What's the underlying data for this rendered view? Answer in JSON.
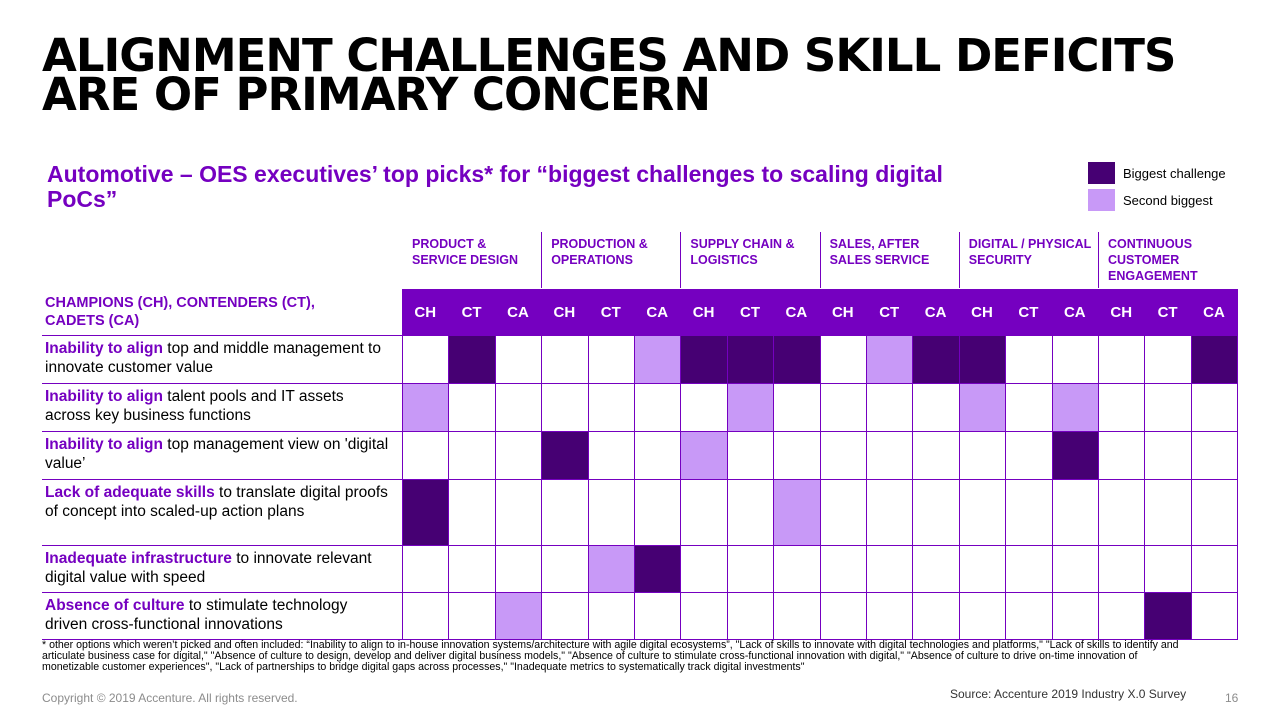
{
  "title": {
    "line1": "ALIGNMENT CHALLENGES AND SKILL DEFICITS",
    "line2": "ARE OF PRIMARY CONCERN"
  },
  "subtitle": "Automotive – OES executives’ top picks* for “biggest challenges to scaling digital PoCs”",
  "legend": [
    {
      "label": "Biggest challenge",
      "color": "#460073"
    },
    {
      "label": "Second biggest",
      "color": "#c899f7"
    }
  ],
  "colors": {
    "accent": "#7500c0",
    "biggest": "#460073",
    "second": "#c899f7"
  },
  "row_header": "CHAMPIONS (CH), CONTENDERS (CT), CADETS (CA)",
  "categories": [
    "PRODUCT & SERVICE DESIGN",
    "PRODUCTION & OPERATIONS",
    "SUPPLY CHAIN & LOGISTICS",
    "SALES, AFTER SALES SERVICE",
    "DIGITAL / PHYSICAL SECURITY",
    "CONTINUOUS CUSTOMER ENGAGEMENT"
  ],
  "sub_columns": [
    "CH",
    "CT",
    "CA"
  ],
  "rows": [
    {
      "bold": "Inability to align",
      "rest": " top and middle management to innovate customer value",
      "cells": [
        0,
        1,
        0,
        0,
        0,
        2,
        1,
        1,
        1,
        0,
        2,
        1,
        1,
        0,
        0,
        0,
        0,
        1
      ]
    },
    {
      "bold": "Inability to align",
      "rest": " talent pools and IT assets across key business functions",
      "cells": [
        2,
        0,
        0,
        0,
        0,
        0,
        0,
        2,
        0,
        0,
        0,
        0,
        2,
        0,
        2,
        0,
        0,
        0
      ]
    },
    {
      "bold": "Inability to align",
      "rest": " top management view on 'digital value’",
      "cells": [
        0,
        0,
        0,
        1,
        0,
        0,
        2,
        0,
        0,
        0,
        0,
        0,
        0,
        0,
        1,
        0,
        0,
        0
      ]
    },
    {
      "bold": "Lack of adequate skills",
      "rest": " to translate digital proofs of concept into scaled-up action plans",
      "cells": [
        1,
        0,
        0,
        0,
        0,
        0,
        0,
        0,
        2,
        0,
        0,
        0,
        0,
        0,
        0,
        0,
        0,
        0
      ]
    },
    {
      "bold": "Inadequate infrastructure",
      "rest": " to innovate relevant digital value with speed",
      "cells": [
        0,
        0,
        0,
        0,
        2,
        1,
        0,
        0,
        0,
        0,
        0,
        0,
        0,
        0,
        0,
        0,
        0,
        0
      ]
    },
    {
      "bold": "Absence of culture",
      "rest": " to stimulate technology driven cross-functional innovations",
      "cells": [
        0,
        0,
        2,
        0,
        0,
        0,
        0,
        0,
        0,
        0,
        0,
        0,
        0,
        0,
        0,
        0,
        1,
        0
      ]
    }
  ],
  "footnote": "* other options which weren’t picked and often included: “Inability to align to in-house innovation systems/architecture with agile digital ecosystems”, \"Lack of skills to innovate with digital technologies and platforms,\" \"Lack of skills to identify and articulate business case for digital,\" \"Absence of culture to design, develop and deliver digital business models,\" \"Absence of culture to stimulate cross-functional innovation with digital,\" \"Absence of culture to drive on-time innovation of monetizable customer experiences\", \"Lack of partnerships to bridge digital gaps across processes,\" \"Inadequate metrics to systematically track digital investments\"",
  "copyright": "Copyright © 2019 Accenture. All rights reserved.",
  "source": "Source: Accenture 2019 Industry X.0 Survey",
  "page_number": "16"
}
